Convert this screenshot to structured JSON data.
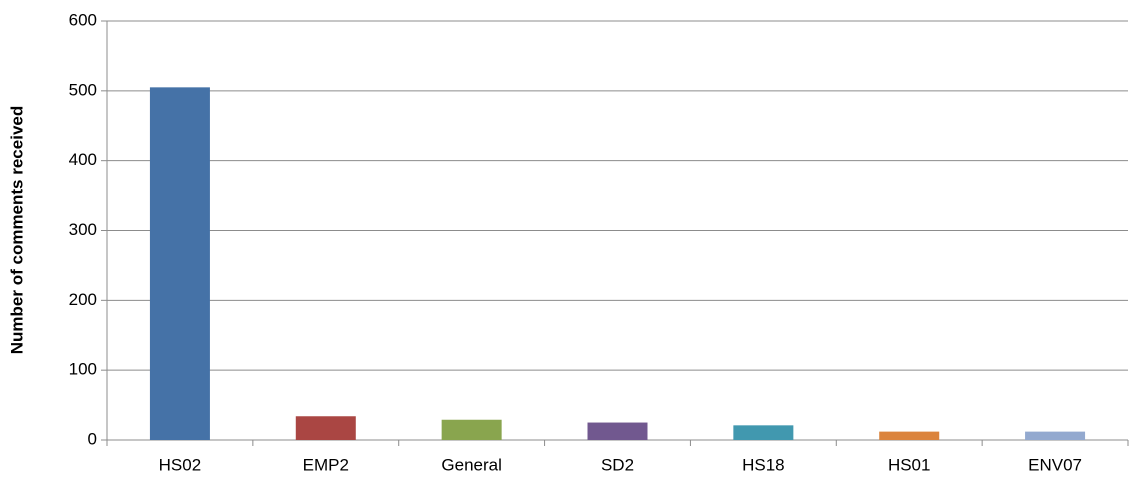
{
  "chart_data": {
    "type": "bar",
    "ylabel": "Number of comments received",
    "categories": [
      "HS02",
      "EMP2",
      "General",
      "SD2",
      "HS18",
      "HS01",
      "ENV07"
    ],
    "values": [
      505,
      34,
      29,
      25,
      21,
      12,
      12
    ],
    "colors": [
      "#4572a7",
      "#aa4643",
      "#89a54e",
      "#71588f",
      "#4198af",
      "#db843d",
      "#93a9cf"
    ],
    "ylim": [
      0,
      600
    ],
    "yticks": [
      0,
      100,
      200,
      300,
      400,
      500,
      600
    ],
    "grid": true
  }
}
